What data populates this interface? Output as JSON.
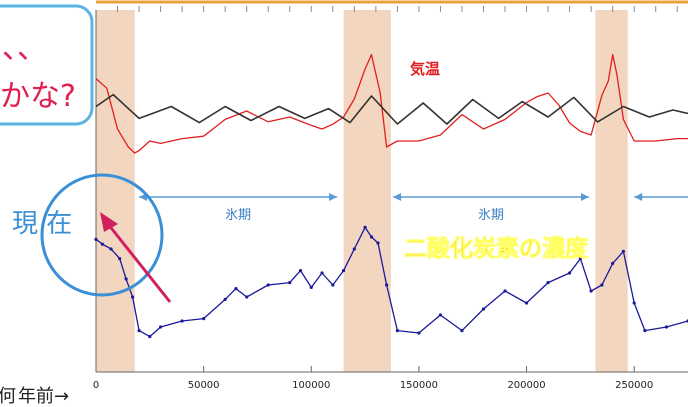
{
  "chart_data": {
    "type": "line",
    "x_axis_label": "年前→",
    "x_axis_label_prefix": "何",
    "x_ticks": [
      "0",
      "50000",
      "100000",
      "150000",
      "200000",
      "250000"
    ],
    "x_tick_values": [
      0,
      50000,
      100000,
      150000,
      200000,
      250000
    ],
    "xlim": [
      0,
      275000
    ],
    "shaded_periods": [
      [
        0,
        18000
      ],
      [
        115000,
        137000
      ],
      [
        232000,
        247000
      ]
    ],
    "glacial_periods": [
      {
        "label": "氷期",
        "range": [
          20000,
          112000
        ]
      },
      {
        "label": "氷期",
        "range": [
          138000,
          229000
        ]
      },
      {
        "label": "",
        "range": [
          250000,
          275000
        ]
      }
    ],
    "series": [
      {
        "name": "気温",
        "color": "#e02020",
        "x": [
          0,
          5000,
          10000,
          15000,
          18000,
          20000,
          25000,
          30000,
          40000,
          50000,
          60000,
          70000,
          80000,
          90000,
          100000,
          105000,
          110000,
          115000,
          120000,
          125000,
          128000,
          132000,
          135000,
          140000,
          150000,
          160000,
          170000,
          180000,
          190000,
          200000,
          205000,
          210000,
          215000,
          220000,
          225000,
          230000,
          235000,
          238000,
          240000,
          242000,
          245000,
          250000,
          260000,
          270000,
          275000
        ],
        "values": [
          0.72,
          0.64,
          0.3,
          0.15,
          0.1,
          0.12,
          0.2,
          0.18,
          0.22,
          0.24,
          0.38,
          0.45,
          0.36,
          0.4,
          0.33,
          0.3,
          0.34,
          0.4,
          0.55,
          0.8,
          0.92,
          0.6,
          0.15,
          0.2,
          0.2,
          0.25,
          0.42,
          0.3,
          0.38,
          0.52,
          0.57,
          0.6,
          0.5,
          0.35,
          0.28,
          0.25,
          0.58,
          0.7,
          0.92,
          0.75,
          0.38,
          0.2,
          0.2,
          0.22,
          0.22
        ]
      },
      {
        "name": "",
        "color": "#333333",
        "x": [
          0,
          8000,
          20000,
          35000,
          48000,
          60000,
          72000,
          85000,
          97000,
          108000,
          118000,
          128000,
          140000,
          152000,
          163000,
          175000,
          187000,
          198000,
          210000,
          222000,
          233000,
          245000,
          257000,
          268000,
          275000
        ],
        "values": [
          0.55,
          0.72,
          0.38,
          0.55,
          0.32,
          0.55,
          0.35,
          0.55,
          0.38,
          0.52,
          0.32,
          0.7,
          0.3,
          0.6,
          0.3,
          0.65,
          0.38,
          0.62,
          0.4,
          0.68,
          0.33,
          0.55,
          0.4,
          0.5,
          0.45
        ]
      },
      {
        "name": "二酸化炭素の濃度",
        "color": "#1a1a9a",
        "x": [
          0,
          3000,
          7000,
          11000,
          14000,
          17000,
          20000,
          25000,
          30000,
          40000,
          50000,
          60000,
          65000,
          70000,
          80000,
          90000,
          95000,
          100000,
          105000,
          110000,
          115000,
          120000,
          125000,
          128000,
          131000,
          135000,
          140000,
          150000,
          160000,
          170000,
          180000,
          190000,
          200000,
          210000,
          220000,
          225000,
          230000,
          235000,
          240000,
          245000,
          250000,
          255000,
          265000,
          275000
        ],
        "values": [
          0.88,
          0.84,
          0.8,
          0.72,
          0.55,
          0.4,
          0.12,
          0.07,
          0.15,
          0.2,
          0.22,
          0.38,
          0.47,
          0.4,
          0.5,
          0.52,
          0.62,
          0.48,
          0.6,
          0.5,
          0.62,
          0.8,
          0.98,
          0.9,
          0.85,
          0.5,
          0.12,
          0.1,
          0.25,
          0.12,
          0.3,
          0.45,
          0.35,
          0.52,
          0.6,
          0.72,
          0.45,
          0.5,
          0.68,
          0.78,
          0.35,
          0.12,
          0.15,
          0.2
        ]
      }
    ],
    "annotations": {
      "temp_label": "気温",
      "co2_label": "二酸化炭素の濃度",
      "genzai": "現 在",
      "speech_line1": "、、",
      "speech_line2": "かな?"
    }
  }
}
